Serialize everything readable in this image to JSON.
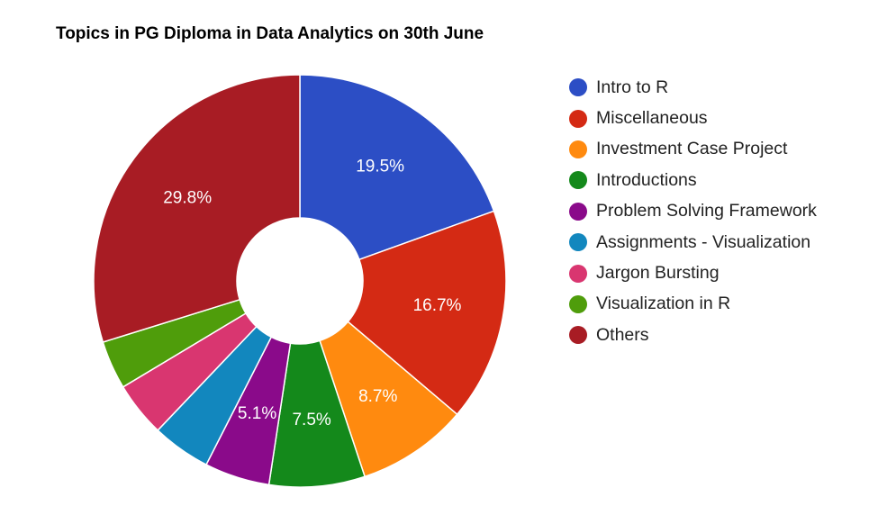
{
  "chart_data": {
    "type": "pie",
    "donut": true,
    "title": "Topics in PG Diploma in Data Analytics on 30th June",
    "legend_position": "right",
    "slices": [
      {
        "name": "Intro to R",
        "value": 19.5,
        "label": "19.5%",
        "color": "#2c4ec5"
      },
      {
        "name": "Miscellaneous",
        "value": 16.7,
        "label": "16.7%",
        "color": "#d42a14"
      },
      {
        "name": "Investment Case Project",
        "value": 8.7,
        "label": "8.7%",
        "color": "#ff8a0f"
      },
      {
        "name": "Introductions",
        "value": 7.5,
        "label": "7.5%",
        "color": "#14891b"
      },
      {
        "name": "Problem Solving Framework",
        "value": 5.1,
        "label": "5.1%",
        "color": "#8a0a8a"
      },
      {
        "name": "Assignments - Visualization",
        "value": 4.6,
        "label": "",
        "color": "#1287be"
      },
      {
        "name": "Jargon Bursting",
        "value": 4.3,
        "label": "",
        "color": "#d93670"
      },
      {
        "name": "Visualization in R",
        "value": 3.8,
        "label": "",
        "color": "#4f9d0b"
      },
      {
        "name": "Others",
        "value": 29.8,
        "label": "29.8%",
        "color": "#a81c24"
      }
    ]
  }
}
